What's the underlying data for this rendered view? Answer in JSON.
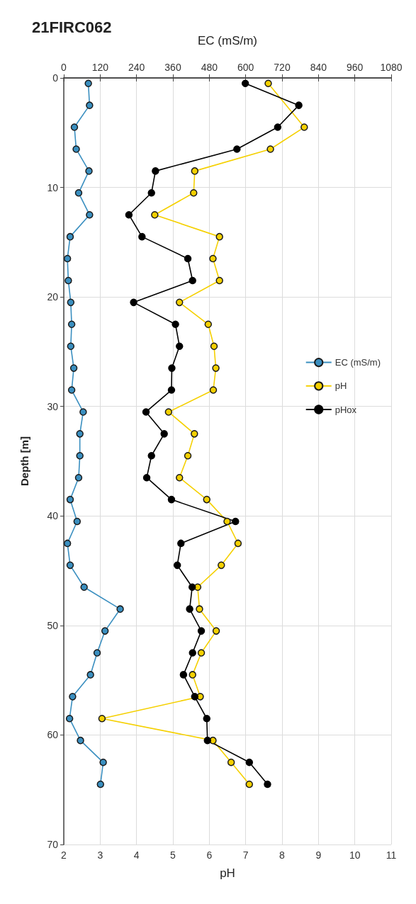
{
  "chart_data": {
    "type": "line",
    "title": "21FIRC062",
    "xlabel": "pH",
    "x2label": "EC (mS/m)",
    "ylabel": "Depth [m]",
    "xlim": [
      2,
      11
    ],
    "xticks": [
      2,
      3,
      4,
      5,
      6,
      7,
      8,
      9,
      10,
      11
    ],
    "x2lim": [
      0,
      1080
    ],
    "x2ticks": [
      0,
      120,
      240,
      360,
      480,
      600,
      720,
      840,
      960,
      1080
    ],
    "ylim": [
      70,
      0
    ],
    "yticks": [
      0,
      10,
      20,
      30,
      40,
      50,
      60,
      70
    ],
    "grid": true,
    "legend": "right",
    "marker": "circle",
    "series": [
      {
        "name": "EC (mS/m)",
        "color": "#3a8fc0",
        "axis": "x2",
        "x": [
          81,
          85,
          35,
          41,
          83,
          49,
          85,
          21,
          12,
          15,
          23,
          26,
          23,
          33,
          26,
          64,
          53,
          53,
          49,
          21,
          44,
          12,
          21,
          67,
          186,
          136,
          110,
          88,
          29,
          19,
          55,
          130,
          121
        ],
        "values": [
          0.5,
          2.5,
          4.5,
          6.5,
          8.5,
          10.5,
          12.5,
          14.5,
          16.5,
          18.5,
          20.5,
          22.5,
          24.5,
          26.5,
          28.5,
          30.5,
          32.5,
          34.5,
          36.5,
          38.5,
          40.5,
          42.5,
          44.5,
          46.5,
          48.5,
          50.5,
          52.5,
          54.5,
          56.5,
          58.5,
          60.5,
          62.5,
          64.5
        ]
      },
      {
        "name": "pH",
        "color": "#f5d000",
        "x": [
          7.62,
          8.61,
          7.68,
          5.6,
          5.57,
          4.5,
          6.28,
          6.1,
          6.28,
          5.18,
          5.97,
          6.13,
          6.18,
          6.11,
          4.88,
          5.59,
          5.41,
          5.18,
          5.93,
          6.49,
          6.79,
          6.33,
          5.68,
          5.73,
          6.19,
          5.78,
          5.54,
          5.75,
          3.05,
          6.1,
          6.6,
          7.1
        ],
        "values": [
          0.5,
          4.5,
          6.5,
          8.5,
          10.5,
          12.5,
          14.5,
          16.5,
          18.5,
          20.5,
          22.5,
          24.5,
          26.5,
          28.5,
          30.5,
          32.5,
          34.5,
          36.5,
          38.5,
          40.5,
          42.5,
          44.5,
          46.5,
          48.5,
          50.5,
          52.5,
          54.5,
          56.5,
          58.5,
          60.5,
          62.5,
          64.5
        ]
      },
      {
        "name": "pHox",
        "color": "#000000",
        "x": [
          6.99,
          8.46,
          7.88,
          6.76,
          4.52,
          4.41,
          3.79,
          4.15,
          5.41,
          5.54,
          3.92,
          5.07,
          5.18,
          4.97,
          4.96,
          4.26,
          4.76,
          4.41,
          4.28,
          4.96,
          6.72,
          5.22,
          5.12,
          5.53,
          5.46,
          5.78,
          5.54,
          5.29,
          5.6,
          5.93,
          5.95,
          7.1,
          7.6
        ],
        "values": [
          0.5,
          2.5,
          4.5,
          6.5,
          8.5,
          10.5,
          12.5,
          14.5,
          16.5,
          18.5,
          20.5,
          22.5,
          24.5,
          26.5,
          28.5,
          30.5,
          32.5,
          34.5,
          36.5,
          38.5,
          40.5,
          42.5,
          44.5,
          46.5,
          48.5,
          50.5,
          52.5,
          54.5,
          56.5,
          58.5,
          60.5,
          62.5,
          64.5
        ]
      }
    ]
  }
}
